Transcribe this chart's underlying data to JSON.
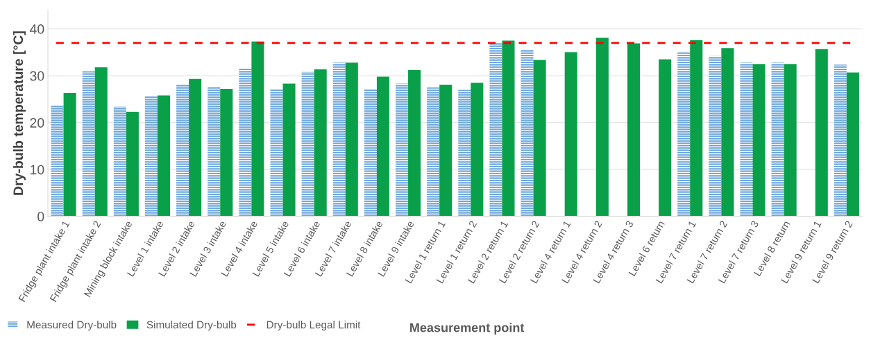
{
  "chart_data": {
    "type": "bar",
    "ylabel": "Dry-bulb temperature [°C]",
    "xlabel": "Measurement point",
    "categories": [
      "Fridge plant intake 1",
      "Fridge plant intake 2",
      "Mining block intake",
      "Level 1 intake",
      "Level 2 intake",
      "Level 3 intake",
      "Level 4 intake",
      "Level 5 intake",
      "Level 6 intake",
      "Level 7 intake",
      "Level 8 intake",
      "Level 9 intake",
      "Level 1 return 1",
      "Level 1 return 2",
      "Level 2 return 1",
      "Level 2 return 2",
      "Level 4 return 1",
      "Level 4 return 2",
      "Level 4 return 3",
      "Level 6 return",
      "Level 7 return 1",
      "Level 7 return 2",
      "Level 7 return 3",
      "Level 8 return",
      "Level 9 return 1",
      "Level 9 return 2"
    ],
    "series": [
      {
        "name": "Measured Dry-bulb",
        "color": "#6fa8dc",
        "values": [
          23.6,
          31.0,
          23.4,
          25.7,
          28.1,
          27.6,
          31.6,
          27.2,
          30.8,
          32.8,
          27.1,
          28.3,
          27.5,
          27.0,
          37.0,
          35.5,
          null,
          null,
          null,
          null,
          35.1,
          34.2,
          32.8,
          32.8,
          null,
          32.4
        ]
      },
      {
        "name": "Simulated Dry-bulb",
        "color": "#0aa04a",
        "values": [
          26.3,
          31.8,
          22.3,
          25.8,
          29.3,
          27.2,
          37.3,
          28.3,
          31.4,
          32.8,
          29.8,
          31.2,
          28.1,
          28.5,
          37.5,
          33.4,
          35.0,
          38.1,
          36.9,
          33.5,
          37.6,
          35.9,
          32.5,
          32.5,
          35.7,
          30.7
        ]
      }
    ],
    "ref_lines": [
      {
        "axis": "y",
        "value": 37,
        "label": "Dry-bulb Legal Limit",
        "color": "#ff0000",
        "line_style": "dashed"
      }
    ],
    "ylim": [
      0,
      44
    ],
    "yticks": [
      0,
      10,
      20,
      30,
      40
    ],
    "grid": "y",
    "legend": "bottom left"
  }
}
